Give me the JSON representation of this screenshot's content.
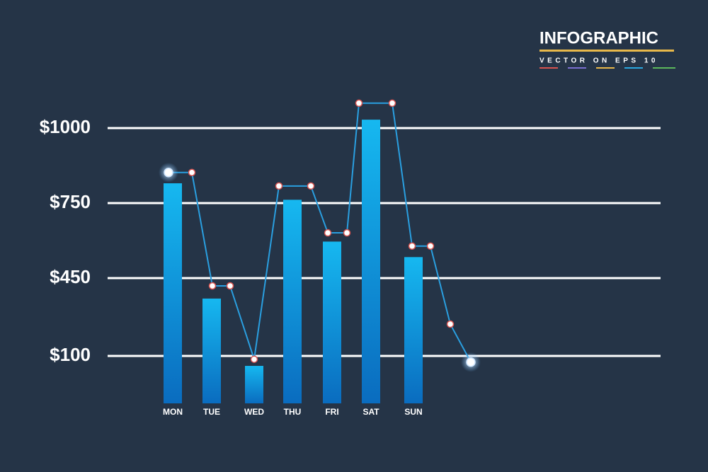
{
  "header": {
    "title": "INFOGRAPHIC",
    "subtitle": "VECTOR ON EPS 10"
  },
  "chart_data": {
    "type": "bar",
    "categories": [
      "MON",
      "TUE",
      "WED",
      "THU",
      "FRI",
      "SAT",
      "SUN"
    ],
    "values": [
      816,
      358,
      79,
      761,
      596,
      1027,
      534
    ],
    "color": "#12b2ec",
    "line": {
      "color": "#2a9fe0",
      "values": [
        852,
        852,
        415,
        415,
        93,
        807,
        807,
        631,
        631,
        1080,
        1080,
        578,
        578,
        243,
        87
      ]
    },
    "ylim": [
      0,
      1100
    ],
    "yticks": [
      {
        "value": 100,
        "label": "$100"
      },
      {
        "value": 450,
        "label": "$450"
      },
      {
        "value": 750,
        "label": "$750"
      },
      {
        "value": 1000,
        "label": "$1000"
      }
    ],
    "grid": true
  }
}
